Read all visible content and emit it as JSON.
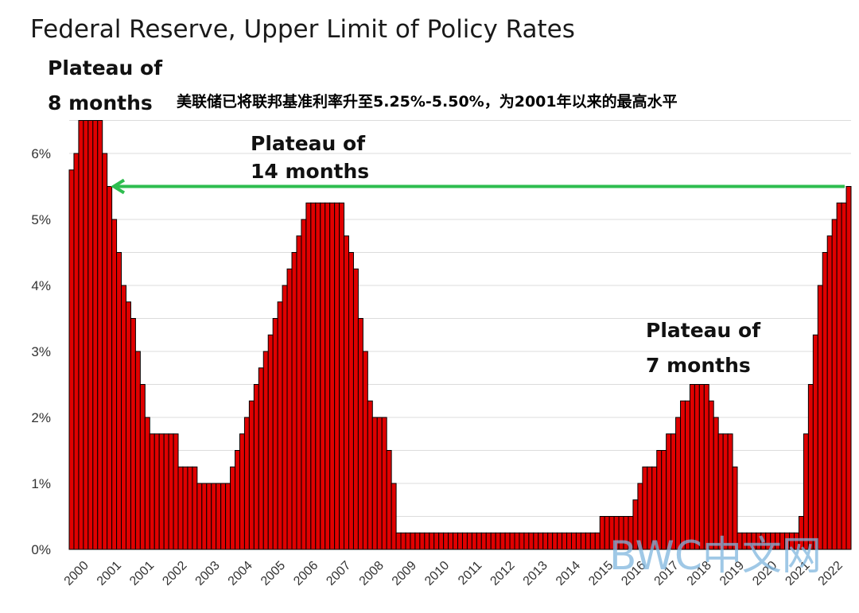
{
  "chart_data": {
    "type": "bar",
    "title": "Federal Reserve, Upper Limit of Policy Rates",
    "subtitle": "美联储已将联邦基准利率升至5.25%-5.50%，为2001年以来的最高水平",
    "xlabel": "",
    "ylabel": "",
    "ylim": [
      0,
      6.8
    ],
    "grid": true,
    "bar_color": "#e00000",
    "arrow_color": "#2ebd4f",
    "y_ticks": [
      {
        "value": 0,
        "label": "0%"
      },
      {
        "value": 1,
        "label": "1%"
      },
      {
        "value": 2,
        "label": "2%"
      },
      {
        "value": 3,
        "label": "3%"
      },
      {
        "value": 4,
        "label": "4%"
      },
      {
        "value": 5,
        "label": "5%"
      },
      {
        "value": 6,
        "label": "6%"
      }
    ],
    "x_tick_labels": [
      "2000",
      "2001",
      "2001",
      "2002",
      "2003",
      "2004",
      "2005",
      "2006",
      "2007",
      "2008",
      "2009",
      "2010",
      "2011",
      "2012",
      "2013",
      "2014",
      "2015",
      "2016",
      "2017",
      "2018",
      "2019",
      "2020",
      "2021",
      "2022"
    ],
    "values": [
      5.75,
      6.0,
      6.5,
      6.5,
      6.5,
      6.5,
      6.5,
      6.0,
      5.5,
      5.0,
      4.5,
      4.0,
      3.75,
      3.5,
      3.0,
      2.5,
      2.0,
      1.75,
      1.75,
      1.75,
      1.75,
      1.75,
      1.75,
      1.25,
      1.25,
      1.25,
      1.25,
      1.0,
      1.0,
      1.0,
      1.0,
      1.0,
      1.0,
      1.0,
      1.25,
      1.5,
      1.75,
      2.0,
      2.25,
      2.5,
      2.75,
      3.0,
      3.25,
      3.5,
      3.75,
      4.0,
      4.25,
      4.5,
      4.75,
      5.0,
      5.25,
      5.25,
      5.25,
      5.25,
      5.25,
      5.25,
      5.25,
      5.25,
      4.75,
      4.5,
      4.25,
      3.5,
      3.0,
      2.25,
      2.0,
      2.0,
      2.0,
      1.5,
      1.0,
      0.25,
      0.25,
      0.25,
      0.25,
      0.25,
      0.25,
      0.25,
      0.25,
      0.25,
      0.25,
      0.25,
      0.25,
      0.25,
      0.25,
      0.25,
      0.25,
      0.25,
      0.25,
      0.25,
      0.25,
      0.25,
      0.25,
      0.25,
      0.25,
      0.25,
      0.25,
      0.25,
      0.25,
      0.25,
      0.25,
      0.25,
      0.25,
      0.25,
      0.25,
      0.25,
      0.25,
      0.25,
      0.25,
      0.25,
      0.25,
      0.25,
      0.25,
      0.25,
      0.5,
      0.5,
      0.5,
      0.5,
      0.5,
      0.5,
      0.5,
      0.75,
      1.0,
      1.25,
      1.25,
      1.25,
      1.5,
      1.5,
      1.75,
      1.75,
      2.0,
      2.25,
      2.25,
      2.5,
      2.5,
      2.5,
      2.5,
      2.25,
      2.0,
      1.75,
      1.75,
      1.75,
      1.25,
      0.25,
      0.25,
      0.25,
      0.25,
      0.25,
      0.25,
      0.25,
      0.25,
      0.25,
      0.25,
      0.25,
      0.25,
      0.25,
      0.5,
      1.75,
      2.5,
      3.25,
      4.0,
      4.5,
      4.75,
      5.0,
      5.25,
      5.25,
      5.5
    ],
    "annotations": [
      {
        "id": "plateau-8",
        "lines": [
          "Plateau of",
          "8 months"
        ]
      },
      {
        "id": "plateau-14",
        "lines": [
          "Plateau of",
          "14 months"
        ]
      },
      {
        "id": "plateau-7",
        "lines": [
          "Plateau of",
          "7 months"
        ]
      }
    ],
    "arrow": {
      "from_value": 5.5,
      "to_value": 5.5
    }
  },
  "watermark": "BWC中文网"
}
